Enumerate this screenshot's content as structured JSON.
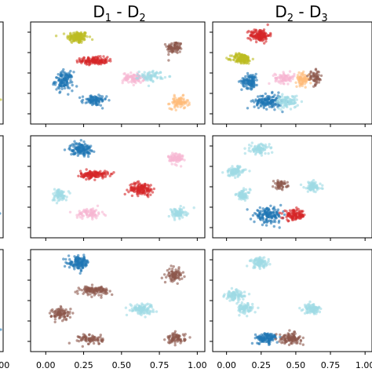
{
  "figure": {
    "columns": [
      {
        "title_main": "",
        "title_sub": "",
        "title_sep": "",
        "title_main2": "",
        "title_sub2": ""
      },
      {
        "title_main": "D",
        "title_sub": "1",
        "title_sep": " - D",
        "title_sub2": "2"
      },
      {
        "title_main": "D",
        "title_sub": "2",
        "title_sep": " - D",
        "title_sub2": "3"
      }
    ],
    "xticks": [
      "0.00",
      "0.25",
      "0.50",
      "0.75",
      "1.00"
    ],
    "x_tick_values": [
      0.0,
      0.25,
      0.5,
      0.75,
      1.0
    ],
    "colors": {
      "blue": "#1f77b4",
      "red": "#d62728",
      "olive": "#bcbd22",
      "brown": "#8c564b",
      "pink": "#f7b6d2",
      "lightblue": "#9edae5",
      "orange": "#ffbb78"
    }
  },
  "chart_data": [
    {
      "type": "scatter",
      "row": 0,
      "col": 1,
      "xlim": [
        -0.1,
        1.05
      ],
      "ylim": [
        0,
        1
      ],
      "clusters": [
        {
          "color": "olive",
          "x": 0.21,
          "y": 0.85,
          "sx": 0.035,
          "sy": 0.03,
          "n": 140
        },
        {
          "color": "brown",
          "x": 0.85,
          "y": 0.75,
          "sx": 0.025,
          "sy": 0.03,
          "n": 80
        },
        {
          "color": "red",
          "x": 0.32,
          "y": 0.62,
          "sx": 0.045,
          "sy": 0.018,
          "n": 140
        },
        {
          "color": "blue",
          "x": 0.12,
          "y": 0.42,
          "sx": 0.03,
          "sy": 0.045,
          "n": 130
        },
        {
          "color": "pink",
          "x": 0.58,
          "y": 0.45,
          "sx": 0.035,
          "sy": 0.025,
          "n": 90
        },
        {
          "color": "lightblue",
          "x": 0.7,
          "y": 0.47,
          "sx": 0.04,
          "sy": 0.025,
          "n": 70
        },
        {
          "color": "blue",
          "x": 0.32,
          "y": 0.23,
          "sx": 0.04,
          "sy": 0.025,
          "n": 90
        },
        {
          "color": "orange",
          "x": 0.88,
          "y": 0.21,
          "sx": 0.03,
          "sy": 0.03,
          "n": 80
        }
      ]
    },
    {
      "type": "scatter",
      "row": 0,
      "col": 2,
      "xlim": [
        -0.1,
        1.05
      ],
      "ylim": [
        0,
        1
      ],
      "clusters": [
        {
          "color": "red",
          "x": 0.24,
          "y": 0.87,
          "sx": 0.035,
          "sy": 0.03,
          "n": 140
        },
        {
          "color": "olive",
          "x": 0.11,
          "y": 0.64,
          "sx": 0.035,
          "sy": 0.025,
          "n": 140
        },
        {
          "color": "blue",
          "x": 0.17,
          "y": 0.42,
          "sx": 0.03,
          "sy": 0.035,
          "n": 110
        },
        {
          "color": "pink",
          "x": 0.42,
          "y": 0.45,
          "sx": 0.035,
          "sy": 0.025,
          "n": 80
        },
        {
          "color": "orange",
          "x": 0.55,
          "y": 0.44,
          "sx": 0.025,
          "sy": 0.03,
          "n": 80
        },
        {
          "color": "brown",
          "x": 0.64,
          "y": 0.45,
          "sx": 0.025,
          "sy": 0.035,
          "n": 60
        },
        {
          "color": "blue",
          "x": 0.3,
          "y": 0.22,
          "sx": 0.05,
          "sy": 0.035,
          "n": 150
        },
        {
          "color": "lightblue",
          "x": 0.44,
          "y": 0.22,
          "sx": 0.04,
          "sy": 0.03,
          "n": 90
        }
      ]
    },
    {
      "type": "scatter",
      "row": 1,
      "col": 1,
      "xlim": [
        -0.1,
        1.05
      ],
      "ylim": [
        0,
        1
      ],
      "clusters": [
        {
          "color": "blue",
          "x": 0.23,
          "y": 0.87,
          "sx": 0.035,
          "sy": 0.03,
          "n": 140
        },
        {
          "color": "pink",
          "x": 0.86,
          "y": 0.78,
          "sx": 0.025,
          "sy": 0.03,
          "n": 80
        },
        {
          "color": "red",
          "x": 0.32,
          "y": 0.62,
          "sx": 0.045,
          "sy": 0.018,
          "n": 130
        },
        {
          "color": "lightblue",
          "x": 0.09,
          "y": 0.42,
          "sx": 0.025,
          "sy": 0.03,
          "n": 70
        },
        {
          "color": "red",
          "x": 0.63,
          "y": 0.48,
          "sx": 0.04,
          "sy": 0.03,
          "n": 140
        },
        {
          "color": "pink",
          "x": 0.29,
          "y": 0.24,
          "sx": 0.04,
          "sy": 0.025,
          "n": 80
        },
        {
          "color": "lightblue",
          "x": 0.87,
          "y": 0.24,
          "sx": 0.03,
          "sy": 0.025,
          "n": 80
        }
      ]
    },
    {
      "type": "scatter",
      "row": 1,
      "col": 2,
      "xlim": [
        -0.1,
        1.05
      ],
      "ylim": [
        0,
        1
      ],
      "clusters": [
        {
          "color": "lightblue",
          "x": 0.24,
          "y": 0.87,
          "sx": 0.035,
          "sy": 0.025,
          "n": 90
        },
        {
          "color": "lightblue",
          "x": 0.06,
          "y": 0.65,
          "sx": 0.035,
          "sy": 0.025,
          "n": 90
        },
        {
          "color": "brown",
          "x": 0.39,
          "y": 0.52,
          "sx": 0.025,
          "sy": 0.02,
          "n": 50
        },
        {
          "color": "lightblue",
          "x": 0.62,
          "y": 0.5,
          "sx": 0.03,
          "sy": 0.025,
          "n": 90
        },
        {
          "color": "lightblue",
          "x": 0.12,
          "y": 0.42,
          "sx": 0.025,
          "sy": 0.025,
          "n": 70
        },
        {
          "color": "blue",
          "x": 0.3,
          "y": 0.22,
          "sx": 0.05,
          "sy": 0.035,
          "n": 150
        },
        {
          "color": "red",
          "x": 0.49,
          "y": 0.22,
          "sx": 0.04,
          "sy": 0.025,
          "n": 110
        }
      ]
    },
    {
      "type": "scatter",
      "row": 2,
      "col": 1,
      "xlim": [
        -0.1,
        1.05
      ],
      "ylim": [
        0,
        1
      ],
      "clusters": [
        {
          "color": "blue",
          "x": 0.22,
          "y": 0.87,
          "sx": 0.035,
          "sy": 0.03,
          "n": 140
        },
        {
          "color": "brown",
          "x": 0.85,
          "y": 0.75,
          "sx": 0.025,
          "sy": 0.03,
          "n": 80
        },
        {
          "color": "brown",
          "x": 0.32,
          "y": 0.6,
          "sx": 0.045,
          "sy": 0.02,
          "n": 120
        },
        {
          "color": "lightblue",
          "x": 0.63,
          "y": 0.42,
          "sx": 0.04,
          "sy": 0.025,
          "n": 110
        },
        {
          "color": "brown",
          "x": 0.1,
          "y": 0.37,
          "sx": 0.03,
          "sy": 0.03,
          "n": 90
        },
        {
          "color": "brown",
          "x": 0.3,
          "y": 0.12,
          "sx": 0.04,
          "sy": 0.025,
          "n": 80
        },
        {
          "color": "brown",
          "x": 0.86,
          "y": 0.13,
          "sx": 0.03,
          "sy": 0.025,
          "n": 80
        }
      ]
    },
    {
      "type": "scatter",
      "row": 2,
      "col": 2,
      "xlim": [
        -0.1,
        1.05
      ],
      "ylim": [
        0,
        1
      ],
      "clusters": [
        {
          "color": "lightblue",
          "x": 0.24,
          "y": 0.87,
          "sx": 0.035,
          "sy": 0.025,
          "n": 90
        },
        {
          "color": "lightblue",
          "x": 0.06,
          "y": 0.55,
          "sx": 0.035,
          "sy": 0.025,
          "n": 90
        },
        {
          "color": "lightblue",
          "x": 0.13,
          "y": 0.42,
          "sx": 0.03,
          "sy": 0.025,
          "n": 80
        },
        {
          "color": "lightblue",
          "x": 0.62,
          "y": 0.42,
          "sx": 0.03,
          "sy": 0.025,
          "n": 90
        },
        {
          "color": "blue",
          "x": 0.29,
          "y": 0.13,
          "sx": 0.04,
          "sy": 0.025,
          "n": 120
        },
        {
          "color": "brown",
          "x": 0.46,
          "y": 0.13,
          "sx": 0.04,
          "sy": 0.025,
          "n": 110
        }
      ]
    }
  ]
}
